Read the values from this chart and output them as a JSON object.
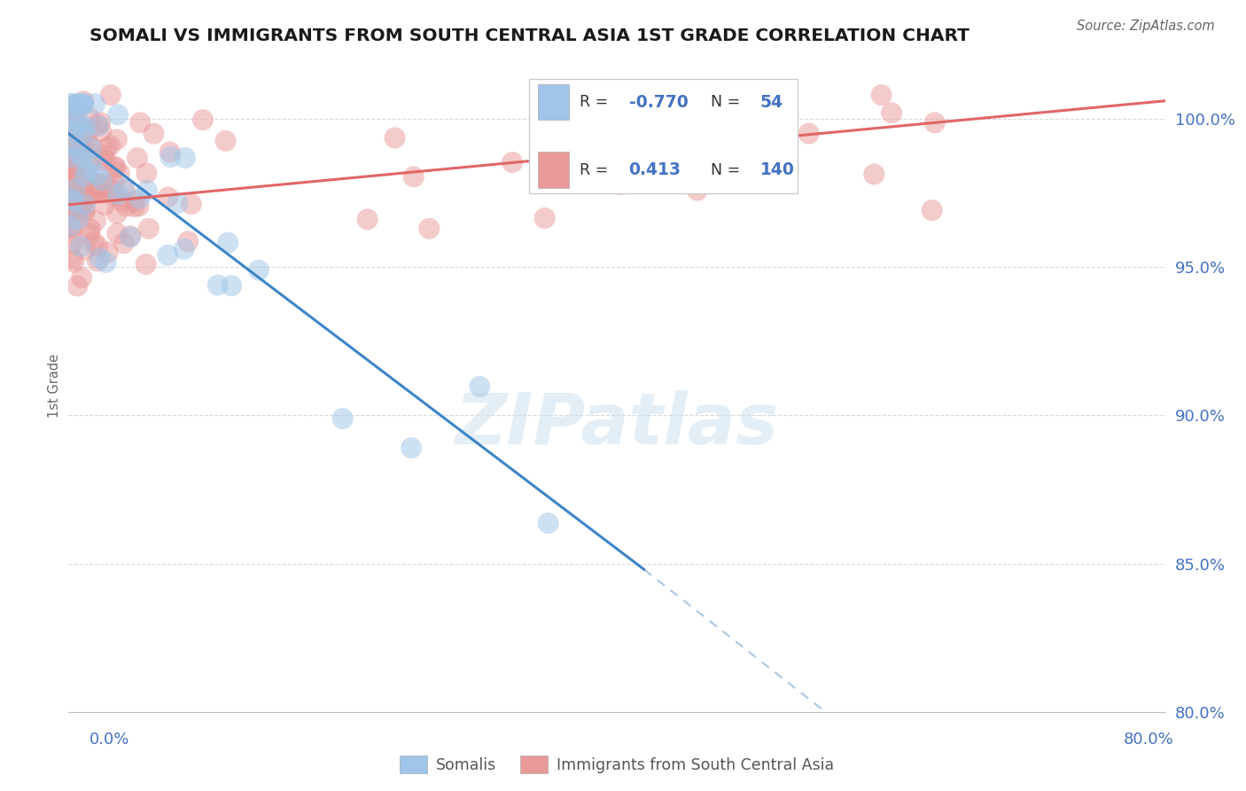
{
  "title": "SOMALI VS IMMIGRANTS FROM SOUTH CENTRAL ASIA 1ST GRADE CORRELATION CHART",
  "source": "Source: ZipAtlas.com",
  "ylabel": "1st Grade",
  "xmin": 0.0,
  "xmax": 80.0,
  "ymin": 80.0,
  "ymax": 102.0,
  "legend_R_blue": "-0.770",
  "legend_N_blue": "54",
  "legend_R_pink": "0.413",
  "legend_N_pink": "140",
  "blue_label": "Somalis",
  "pink_label": "Immigrants from South Central Asia",
  "watermark": "ZIPatlas",
  "background_color": "#ffffff",
  "blue_color": "#9fc5e8",
  "pink_color": "#ea9999",
  "blue_line_color": "#3d85c8",
  "pink_line_color": "#e06666",
  "grid_color": "#d0d0d0",
  "title_color": "#1a1a1a",
  "axis_label_color": "#4472c4",
  "yticks": [
    80.0,
    85.0,
    90.0,
    95.0,
    100.0
  ]
}
